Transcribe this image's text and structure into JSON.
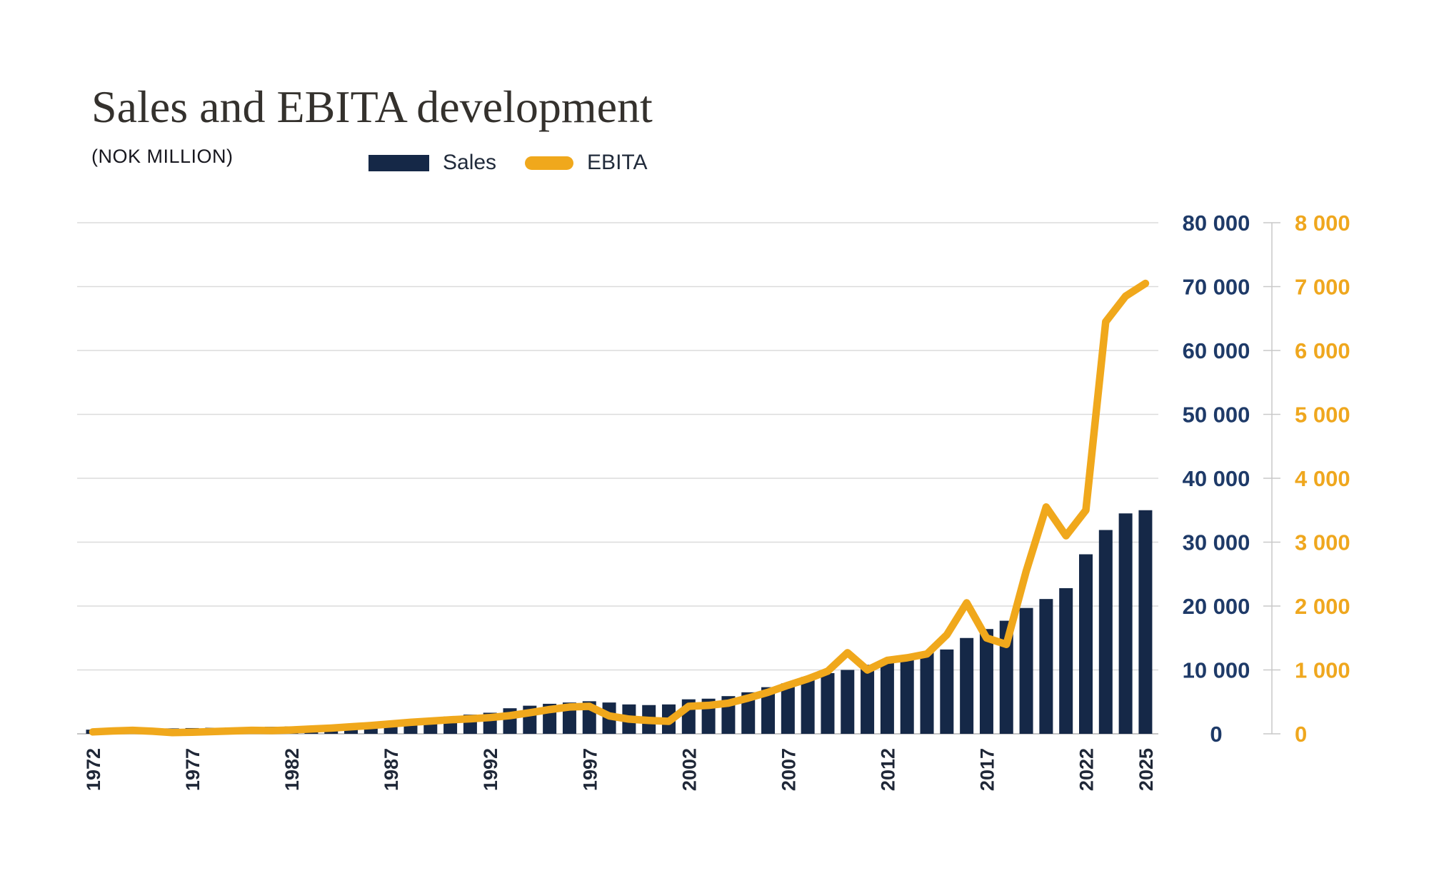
{
  "header": {
    "title": "Sales and EBITA development",
    "subtitle": "(NOK MILLION)"
  },
  "legend": [
    {
      "label": "Sales",
      "swatch": "rect",
      "color": "#152847"
    },
    {
      "label": "EBITA",
      "swatch": "pill",
      "color": "#F0A81C"
    }
  ],
  "chart_data": {
    "type": "bar+line",
    "title": "Sales and EBITA development",
    "unit_label": "(NOK MILLION)",
    "grid": true,
    "legend_position": "top",
    "x": [
      1972,
      1973,
      1974,
      1975,
      1976,
      1977,
      1978,
      1979,
      1980,
      1981,
      1982,
      1983,
      1984,
      1985,
      1986,
      1987,
      1988,
      1989,
      1990,
      1991,
      1992,
      1993,
      1994,
      1995,
      1996,
      1997,
      1998,
      1999,
      2000,
      2001,
      2002,
      2003,
      2004,
      2005,
      2006,
      2007,
      2008,
      2009,
      2010,
      2011,
      2012,
      2013,
      2014,
      2015,
      2016,
      2017,
      2018,
      2019,
      2020,
      2021,
      2022,
      2023,
      2024,
      2025
    ],
    "x_tick_years": [
      1972,
      1977,
      1982,
      1987,
      1992,
      1997,
      2002,
      2007,
      2012,
      2017,
      2022,
      2025
    ],
    "series": [
      {
        "name": "Sales",
        "type": "bar",
        "axis": "left",
        "color": "#152847",
        "values": [
          650,
          700,
          750,
          800,
          850,
          900,
          950,
          1000,
          1050,
          1100,
          1150,
          1250,
          1350,
          1500,
          1700,
          1900,
          2100,
          2400,
          2700,
          3000,
          3300,
          4000,
          4400,
          4700,
          4900,
          5100,
          4900,
          4600,
          4500,
          4600,
          5400,
          5500,
          5900,
          6500,
          7300,
          7900,
          8900,
          9500,
          10000,
          10800,
          11500,
          11900,
          12800,
          13200,
          15000,
          16400,
          17700,
          19700,
          21100,
          22800,
          28100,
          31900,
          34500,
          35000
        ]
      },
      {
        "name": "EBITA",
        "type": "line",
        "axis": "right",
        "color": "#F0A81C",
        "values": [
          30,
          45,
          55,
          40,
          20,
          25,
          35,
          45,
          55,
          50,
          60,
          75,
          90,
          110,
          130,
          155,
          180,
          200,
          220,
          235,
          255,
          285,
          330,
          380,
          420,
          430,
          280,
          230,
          210,
          195,
          430,
          445,
          480,
          560,
          650,
          760,
          860,
          980,
          1270,
          1000,
          1150,
          1190,
          1250,
          1550,
          2050,
          1500,
          1400,
          2550,
          3550,
          3100,
          3500,
          6450,
          6850,
          7050
        ]
      }
    ],
    "left_axis": {
      "title": "Sales",
      "min": 0,
      "max": 80000,
      "step": 10000,
      "label_color": "#1E3A68",
      "tick_labels": [
        "0",
        "10 000",
        "20 000",
        "30 000",
        "40 000",
        "50 000",
        "60 000",
        "70 000",
        "80 000"
      ]
    },
    "right_axis": {
      "title": "EBITA",
      "min": 0,
      "max": 8000,
      "step": 1000,
      "label_color": "#EFA71E",
      "tick_labels": [
        "0",
        "1 000",
        "2 000",
        "3 000",
        "4 000",
        "5 000",
        "6 000",
        "7 000",
        "8 000"
      ]
    },
    "colors": {
      "bar": "#152847",
      "line": "#F0A81C",
      "gridline": "#DBDBDB",
      "axis_line": "#C6C6C6",
      "x_label": "#1F2737",
      "title": "#34312D"
    }
  }
}
